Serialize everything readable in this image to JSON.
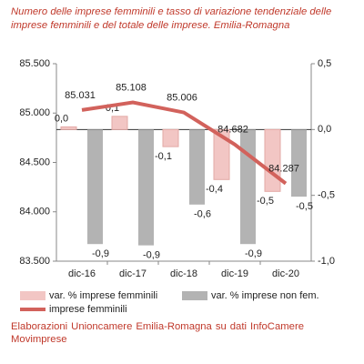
{
  "chart_data": {
    "type": "bar",
    "title": "Numero delle imprese femminili e tasso di variazione tendenziale delle imprese femminili e del totale delle imprese. Emilia-Romagna",
    "source": "Elaborazioni Unioncamere Emilia-Romagna su dati InfoCamere Movimprese",
    "categories": [
      "dic-16",
      "dic-17",
      "dic-18",
      "dic-19",
      "dic-20"
    ],
    "ylim": [
      83500,
      85500
    ],
    "yticks": [
      {
        "value": 83500,
        "label": "83.500"
      },
      {
        "value": 84000,
        "label": "84.000"
      },
      {
        "value": 84500,
        "label": "84.500"
      },
      {
        "value": 85000,
        "label": "85.000"
      },
      {
        "value": 85500,
        "label": "85.500"
      }
    ],
    "y2lim": [
      -1.0,
      0.5
    ],
    "y2ticks": [
      {
        "value": -1.0,
        "label": "-1,0"
      },
      {
        "value": -0.5,
        "label": "-0,5"
      },
      {
        "value": 0.0,
        "label": "0,0"
      },
      {
        "value": 0.5,
        "label": "0,5"
      }
    ],
    "series": [
      {
        "name": "var. % imprese femminili",
        "type": "bar",
        "axis": "y2",
        "color": "#f2c6c4",
        "values": [
          0.02,
          0.1,
          -0.13,
          -0.38,
          -0.47
        ],
        "value_labels": [
          "0,0",
          "0,1",
          "-0,1",
          "-0,4",
          "-0,5"
        ]
      },
      {
        "name": "var. % imprese non fem.",
        "type": "bar",
        "axis": "y2",
        "color": "#b3b3b3",
        "values": [
          -0.87,
          -0.88,
          -0.57,
          -0.87,
          -0.51
        ],
        "value_labels": [
          "-0,9",
          "-0,9",
          "-0,6",
          "-0,9",
          "-0,5"
        ]
      },
      {
        "name": "imprese femminili",
        "type": "line",
        "axis": "y",
        "color": "#d2625c",
        "values": [
          85031,
          85108,
          85006,
          84682,
          84287
        ],
        "value_labels": [
          "85.031",
          "85.108",
          "85.006",
          "84.682",
          "84.287"
        ]
      }
    ]
  }
}
